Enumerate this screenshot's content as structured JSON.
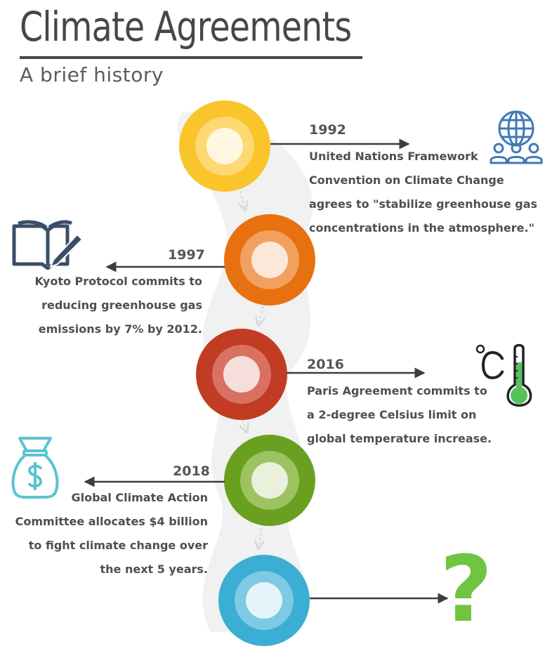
{
  "header": {
    "title": "Climate Agreements",
    "subtitle": "A brief history"
  },
  "timeline": [
    {
      "year": "1992",
      "text": "United Nations Framework Convention on Climate Change agrees to \"stabilize greenhouse gas concentrations in the atmosphere.\"",
      "lines": [
        "United Nations Framework",
        "Convention on Climate Change",
        "agrees to \"stabilize greenhouse gas",
        "concentrations in the atmosphere.\""
      ],
      "color": "#f9c52a",
      "icon": "globe-people-icon"
    },
    {
      "year": "1997",
      "text": "Kyoto Protocol commits to reducing greenhouse gas emissions by 7% by 2012.",
      "lines": [
        "Kyoto Protocol commits to",
        "reducing greenhouse gas",
        "emissions by 7% by 2012."
      ],
      "color": "#e8710f",
      "icon": "book-pencil-icon"
    },
    {
      "year": "2016",
      "text": "Paris Agreement commits to a 2-degree Celsius limit on global temperature increase.",
      "lines": [
        "Paris Agreement commits to",
        "a 2-degree Celsius limit on",
        "global temperature increase."
      ],
      "color": "#c23b23",
      "icon": "thermometer-celsius-icon"
    },
    {
      "year": "2018",
      "text": "Global Climate Action Committee allocates $4 billion to fight climate change over the next 5 years.",
      "lines": [
        "Global Climate Action",
        "Committee allocates $4 billion",
        "to fight climate change over",
        "the next 5 years."
      ],
      "color": "#6aa020",
      "icon": "money-bag-icon"
    },
    {
      "year": "",
      "text": "",
      "lines": [],
      "color": "#3aaed3",
      "icon": "question-mark-icon"
    }
  ],
  "final_mark": "?",
  "colors": {
    "text": "#4a4a4a",
    "path": "#f0f0f0",
    "icon_blue": "#3f79b5",
    "icon_navy": "#3a4e66",
    "icon_teal": "#5cc3d0",
    "icon_green": "#6fc442"
  }
}
